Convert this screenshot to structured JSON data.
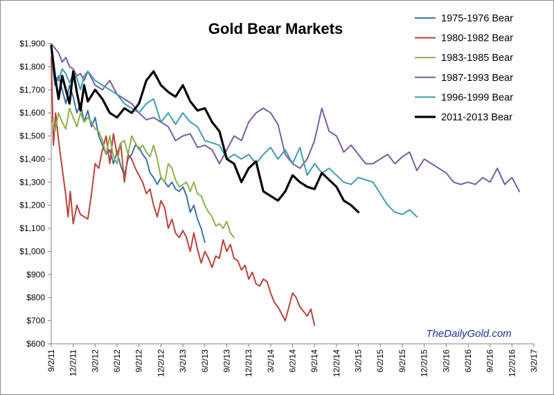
{
  "chart_data": {
    "type": "line",
    "title": "Gold Bear Markets",
    "xlabel": "",
    "ylabel": "",
    "ylim": [
      600,
      1900
    ],
    "y_ticks": [
      600,
      700,
      800,
      900,
      1000,
      1100,
      1200,
      1300,
      1400,
      1500,
      1600,
      1700,
      1800,
      1900
    ],
    "y_tick_labels": [
      "$600",
      "$700",
      "$800",
      "$900",
      "$1,000",
      "$1,100",
      "$1,200",
      "$1,300",
      "$1,400",
      "$1,500",
      "$1,600",
      "$1,700",
      "$1,800",
      "$1,900"
    ],
    "x_ticks": [
      "9/2/11",
      "12/2/11",
      "3/2/12",
      "6/2/12",
      "9/2/12",
      "12/2/12",
      "3/2/13",
      "6/2/13",
      "9/2/13",
      "12/2/13",
      "3/2/14",
      "6/2/14",
      "9/2/14",
      "12/2/14",
      "3/2/15",
      "6/2/15",
      "9/2/15",
      "12/2/15",
      "3/2/16",
      "6/2/16",
      "9/2/16",
      "12/2/16",
      "3/2/17"
    ],
    "x_unit": "months since 9/2/11",
    "grid": false,
    "legend_position": "top-right",
    "watermark": "TheDailyGold.com",
    "series": [
      {
        "name": "1975-1976 Bear",
        "color": "#3a6fb0",
        "width": 2,
        "x": [
          0,
          0.2,
          0.5,
          1,
          1.5,
          2,
          2.5,
          3,
          3.5,
          4,
          4.5,
          5,
          5.5,
          6,
          6.5,
          7,
          7.5,
          8,
          8.5,
          9,
          9.5,
          10,
          10.5,
          11,
          11.5,
          12,
          12.5,
          13,
          13.5,
          14,
          14.5,
          15,
          15.5,
          16,
          16.5,
          17,
          17.5,
          18,
          18.5,
          19,
          19.5,
          20,
          20.5,
          21
        ],
        "y": [
          1880,
          1800,
          1720,
          1760,
          1700,
          1640,
          1720,
          1670,
          1600,
          1640,
          1560,
          1610,
          1540,
          1580,
          1500,
          1460,
          1420,
          1440,
          1380,
          1430,
          1370,
          1330,
          1400,
          1420,
          1460,
          1450,
          1420,
          1400,
          1340,
          1320,
          1290,
          1320,
          1300,
          1280,
          1300,
          1270,
          1260,
          1280,
          1240,
          1170,
          1200,
          1140,
          1100,
          1040
        ]
      },
      {
        "name": "1980-1982 Bear",
        "color": "#b9413b",
        "width": 2,
        "x": [
          0,
          0.3,
          0.6,
          1,
          1.5,
          2,
          2.3,
          2.6,
          3,
          3.5,
          4,
          4.5,
          5,
          5.5,
          6,
          6.5,
          7,
          7.5,
          8,
          8.5,
          9,
          9.5,
          10,
          10.5,
          11,
          11.5,
          12,
          12.5,
          13,
          13.5,
          14,
          14.5,
          15,
          15.5,
          16,
          16.5,
          17,
          17.5,
          18,
          18.5,
          19,
          19.5,
          20,
          20.5,
          21,
          21.5,
          22,
          22.5,
          23,
          23.5,
          24,
          24.5,
          25,
          25.5,
          26,
          26.5,
          27,
          27.5,
          28,
          28.5,
          29,
          29.5,
          30,
          30.5,
          31,
          31.5,
          32,
          32.5,
          33,
          33.5,
          34,
          34.5,
          35,
          35.5,
          36
        ],
        "y": [
          1840,
          1460,
          1600,
          1480,
          1360,
          1240,
          1150,
          1260,
          1120,
          1200,
          1160,
          1150,
          1140,
          1250,
          1380,
          1360,
          1440,
          1500,
          1380,
          1510,
          1420,
          1470,
          1300,
          1420,
          1400,
          1360,
          1330,
          1300,
          1250,
          1270,
          1200,
          1150,
          1220,
          1190,
          1100,
          1140,
          1080,
          1060,
          1090,
          1060,
          1000,
          1080,
          1010,
          950,
          1000,
          970,
          930,
          980,
          970,
          1050,
          1000,
          1030,
          970,
          960,
          920,
          940,
          880,
          910,
          860,
          850,
          880,
          870,
          820,
          780,
          760,
          730,
          700,
          760,
          820,
          800,
          760,
          740,
          720,
          750,
          680
        ]
      },
      {
        "name": "1983-1985 Bear",
        "color": "#8db04a",
        "width": 2,
        "x": [
          0,
          0.5,
          1,
          1.5,
          2,
          2.5,
          3,
          3.5,
          4,
          4.5,
          5,
          5.5,
          6,
          6.5,
          7,
          7.5,
          8,
          8.5,
          9,
          9.5,
          10,
          10.5,
          11,
          11.5,
          12,
          12.5,
          13,
          13.5,
          14,
          14.5,
          15,
          15.5,
          16,
          16.5,
          17,
          17.5,
          18,
          18.5,
          19,
          19.5,
          20,
          20.5,
          21,
          21.5,
          22,
          22.5,
          23,
          23.5,
          24,
          24.5,
          25
        ],
        "y": [
          1580,
          1520,
          1600,
          1560,
          1530,
          1620,
          1580,
          1540,
          1600,
          1560,
          1580,
          1560,
          1530,
          1520,
          1480,
          1420,
          1500,
          1410,
          1380,
          1470,
          1480,
          1420,
          1500,
          1470,
          1440,
          1460,
          1430,
          1410,
          1460,
          1400,
          1320,
          1300,
          1380,
          1360,
          1310,
          1280,
          1290,
          1300,
          1260,
          1300,
          1250,
          1240,
          1200,
          1170,
          1150,
          1110,
          1120,
          1100,
          1130,
          1080,
          1060
        ]
      },
      {
        "name": "1987-1993 Bear",
        "color": "#7a5aa3",
        "width": 2,
        "x": [
          0,
          0.5,
          1,
          1.5,
          2,
          2.5,
          3,
          3.5,
          4,
          4.5,
          5,
          6,
          7,
          8,
          9,
          10,
          11,
          12,
          13,
          14,
          15,
          16,
          17,
          18,
          19,
          20,
          21,
          22,
          23,
          24,
          25,
          26,
          27,
          28,
          29,
          30,
          31,
          32,
          33,
          34,
          35,
          36,
          37,
          38,
          39,
          40,
          41,
          42,
          43,
          44,
          45,
          46,
          47,
          48,
          49,
          50,
          51,
          52,
          53,
          54,
          55,
          56,
          57,
          58,
          59,
          60,
          61,
          62,
          63,
          64
        ],
        "y": [
          1900,
          1880,
          1860,
          1820,
          1840,
          1800,
          1790,
          1760,
          1770,
          1740,
          1780,
          1720,
          1700,
          1740,
          1680,
          1660,
          1640,
          1600,
          1570,
          1580,
          1560,
          1540,
          1480,
          1500,
          1510,
          1450,
          1460,
          1440,
          1380,
          1440,
          1500,
          1480,
          1560,
          1600,
          1620,
          1600,
          1550,
          1420,
          1380,
          1360,
          1400,
          1480,
          1620,
          1520,
          1500,
          1430,
          1460,
          1420,
          1380,
          1380,
          1400,
          1420,
          1380,
          1410,
          1430,
          1350,
          1400,
          1380,
          1360,
          1340,
          1300,
          1290,
          1300,
          1290,
          1320,
          1300,
          1360,
          1290,
          1320,
          1260
        ]
      },
      {
        "name": "1996-1999 Bear",
        "color": "#3d9bb3",
        "width": 2,
        "x": [
          0,
          0.5,
          1,
          1.5,
          2,
          2.5,
          3,
          3.5,
          4,
          4.5,
          5,
          6,
          7,
          8,
          9,
          10,
          11,
          12,
          13,
          14,
          15,
          16,
          17,
          18,
          19,
          20,
          21,
          22,
          23,
          24,
          25,
          26,
          27,
          28,
          29,
          30,
          31,
          32,
          33,
          34,
          35,
          36,
          37,
          38,
          39,
          40,
          41,
          42,
          43,
          44,
          45,
          46,
          47,
          48,
          49,
          50
        ],
        "y": [
          1880,
          1760,
          1740,
          1790,
          1770,
          1730,
          1770,
          1750,
          1700,
          1760,
          1780,
          1740,
          1720,
          1700,
          1680,
          1640,
          1620,
          1600,
          1640,
          1660,
          1560,
          1600,
          1550,
          1600,
          1560,
          1540,
          1480,
          1470,
          1460,
          1400,
          1420,
          1400,
          1420,
          1380,
          1420,
          1450,
          1400,
          1440,
          1380,
          1450,
          1330,
          1380,
          1340,
          1360,
          1330,
          1300,
          1290,
          1320,
          1310,
          1300,
          1250,
          1200,
          1170,
          1160,
          1180,
          1150
        ]
      },
      {
        "name": "2011-2013 Bear",
        "color": "#000000",
        "width": 3.2,
        "x": [
          0,
          0.5,
          1,
          1.5,
          2,
          2.5,
          3,
          3.5,
          4,
          4.5,
          5,
          6,
          7,
          8,
          9,
          10,
          11,
          12,
          13,
          14,
          15,
          16,
          17,
          18,
          19,
          20,
          21,
          22,
          23,
          24,
          25,
          26,
          27,
          28,
          29,
          30,
          31,
          32,
          33,
          34,
          35,
          36,
          37,
          38,
          39,
          40,
          41,
          42
        ],
        "y": [
          1890,
          1760,
          1660,
          1760,
          1700,
          1640,
          1780,
          1690,
          1610,
          1720,
          1650,
          1700,
          1660,
          1600,
          1580,
          1620,
          1600,
          1640,
          1740,
          1780,
          1720,
          1690,
          1670,
          1720,
          1650,
          1610,
          1620,
          1560,
          1520,
          1400,
          1380,
          1300,
          1360,
          1390,
          1260,
          1240,
          1220,
          1260,
          1330,
          1300,
          1280,
          1270,
          1340,
          1310,
          1280,
          1220,
          1200,
          1170
        ]
      }
    ]
  }
}
